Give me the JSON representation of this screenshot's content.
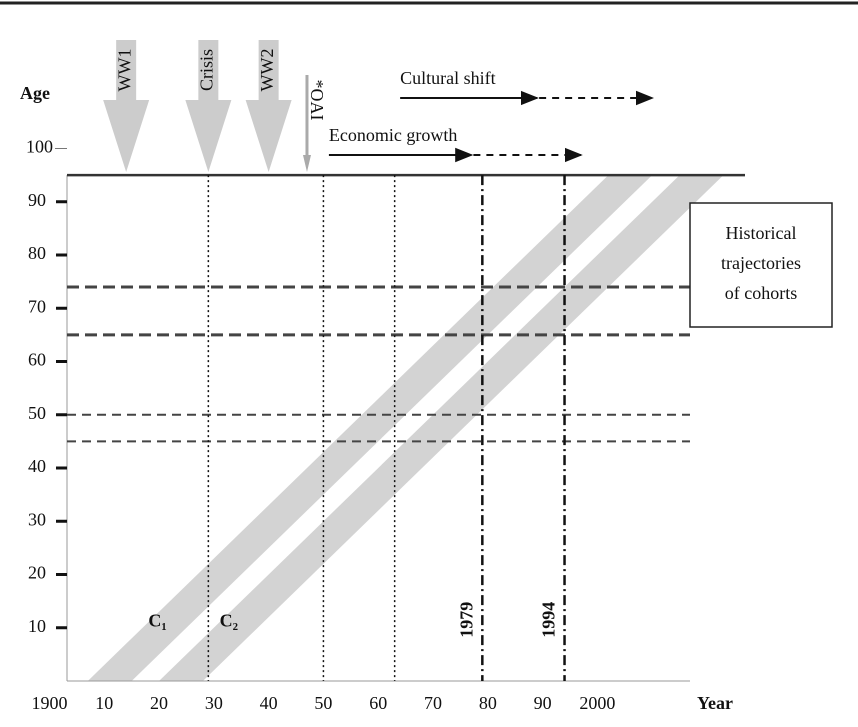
{
  "chart_data": {
    "type": "lexis",
    "y_label": "Age",
    "x_label": "Year",
    "xlim": [
      1897,
      2025
    ],
    "ylim": [
      0,
      100
    ],
    "xticks": [
      1900,
      {
        "value": 1910,
        "label": "10"
      },
      {
        "value": 1920,
        "label": "20"
      },
      {
        "value": 1930,
        "label": "30"
      },
      {
        "value": 1940,
        "label": "40"
      },
      {
        "value": 1950,
        "label": "50"
      },
      {
        "value": 1960,
        "label": "60"
      },
      {
        "value": 1970,
        "label": "70"
      },
      {
        "value": 1980,
        "label": "80"
      },
      {
        "value": 1990,
        "label": "90"
      },
      2000
    ],
    "yticks": [
      10,
      20,
      30,
      40,
      50,
      60,
      70,
      80,
      90,
      100
    ],
    "top_line_age": 95,
    "cohorts": [
      {
        "name": "C₁",
        "born": [
          1907,
          1915
        ],
        "color": "#d3d3d3"
      },
      {
        "name": "C₂",
        "born": [
          1920,
          1928
        ],
        "color": "#d3d3d3"
      }
    ],
    "age_lines": [
      {
        "age": 74,
        "style": "thick"
      },
      {
        "age": 65,
        "style": "thick"
      },
      {
        "age": 50,
        "style": "thin"
      },
      {
        "age": 45,
        "style": "thin"
      }
    ],
    "period_lines": [
      {
        "year": 1929,
        "style": "dotted"
      },
      {
        "year": 1950,
        "style": "dotted"
      },
      {
        "year": 1963,
        "style": "dotted"
      },
      {
        "year": 1979,
        "style": "dashdot",
        "label": "1979"
      },
      {
        "year": 1994,
        "style": "dashdot",
        "label": "1994"
      }
    ],
    "events": [
      {
        "label": "WW1",
        "year": 1914,
        "kind": "big"
      },
      {
        "label": "Crisis",
        "year": 1929,
        "kind": "big"
      },
      {
        "label": "WW2",
        "year": 1940,
        "kind": "big"
      },
      {
        "label": "*OAI",
        "year": 1947,
        "kind": "thin"
      }
    ],
    "trends": [
      {
        "label": "Economic growth",
        "solid": [
          1951,
          1977
        ],
        "dashed_to": 1997
      },
      {
        "label": "Cultural shift",
        "solid": [
          1964,
          1989
        ],
        "dashed_to": 2010
      }
    ],
    "legend_box": [
      "Historical",
      "trajectories",
      "of cohorts"
    ]
  }
}
